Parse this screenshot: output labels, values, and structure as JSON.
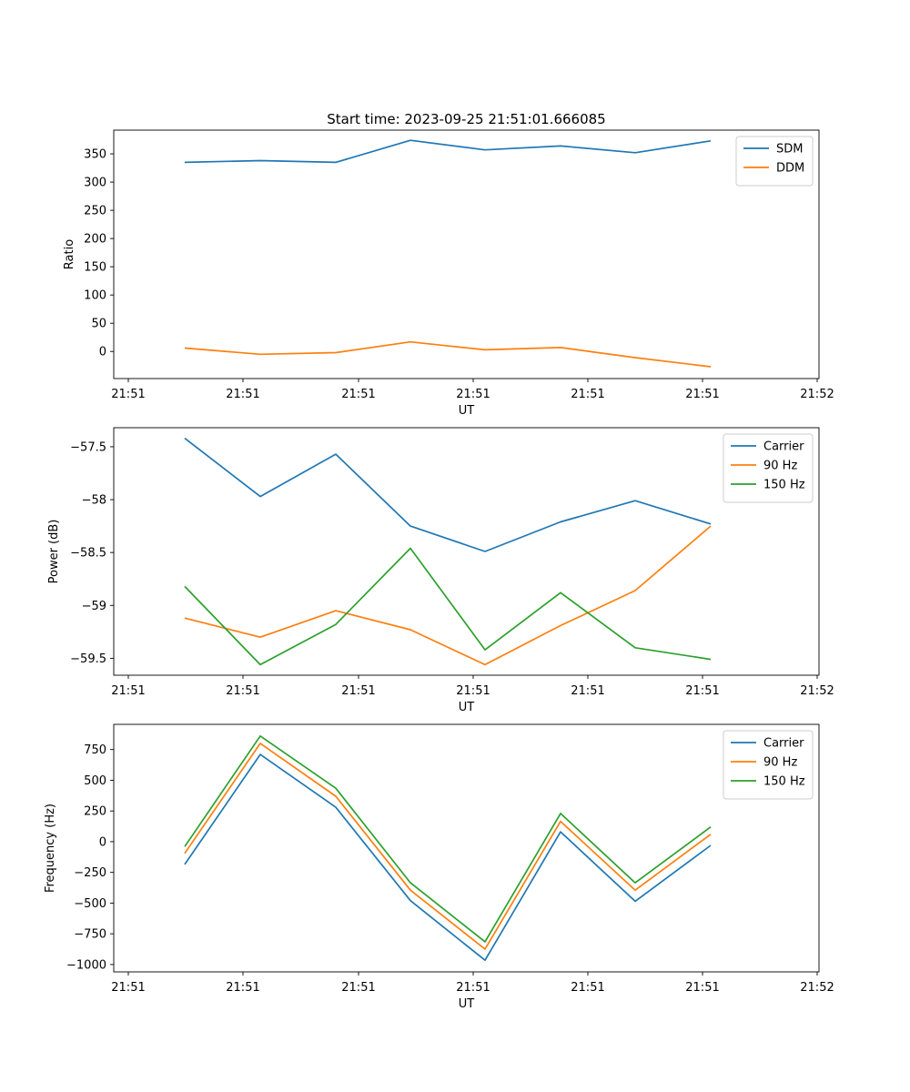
{
  "figure_title": "Start time: 2023-09-25 21:51:01.666085",
  "chart_data": [
    {
      "type": "line",
      "title": "Start time: 2023-09-25 21:51:01.666085",
      "xlabel": "UT",
      "ylabel": "Ratio",
      "x_ticks": [
        "21:51",
        "21:51",
        "21:51",
        "21:51",
        "21:51",
        "21:51",
        "21:52"
      ],
      "y_ticks": [
        0,
        50,
        100,
        150,
        200,
        250,
        300,
        350
      ],
      "ylim": [
        -48,
        392
      ],
      "grid": false,
      "legend": "top-right",
      "series": [
        {
          "name": "SDM",
          "color": "#1f77b4",
          "values": [
            335,
            338,
            335,
            374,
            357,
            364,
            352,
            373
          ]
        },
        {
          "name": "DDM",
          "color": "#ff7f0e",
          "values": [
            6,
            -5,
            -2,
            17,
            3,
            7,
            -11,
            -27
          ]
        }
      ]
    },
    {
      "type": "line",
      "title": "",
      "xlabel": "UT",
      "ylabel": "Power (dB)",
      "x_ticks": [
        "21:51",
        "21:51",
        "21:51",
        "21:51",
        "21:51",
        "21:51",
        "21:52"
      ],
      "y_ticks": [
        -57.5,
        -58.0,
        -58.5,
        -59.0,
        -59.5
      ],
      "ylim": [
        -59.66,
        -57.32
      ],
      "grid": false,
      "legend": "top-right",
      "series": [
        {
          "name": "Carrier",
          "color": "#1f77b4",
          "values": [
            -57.42,
            -57.97,
            -57.57,
            -58.25,
            -58.49,
            -58.21,
            -58.01,
            -58.23
          ]
        },
        {
          "name": "90 Hz",
          "color": "#ff7f0e",
          "values": [
            -59.12,
            -59.3,
            -59.05,
            -59.23,
            -59.56,
            -59.19,
            -58.86,
            -58.25
          ]
        },
        {
          "name": "150 Hz",
          "color": "#2ca02c",
          "values": [
            -58.82,
            -59.56,
            -59.18,
            -58.46,
            -59.42,
            -58.88,
            -59.4,
            -59.51
          ]
        }
      ]
    },
    {
      "type": "line",
      "title": "",
      "xlabel": "UT",
      "ylabel": "Frequency (Hz)",
      "x_ticks": [
        "21:51",
        "21:51",
        "21:51",
        "21:51",
        "21:51",
        "21:51",
        "21:52"
      ],
      "y_ticks": [
        750,
        500,
        250,
        0,
        -250,
        -500,
        -750,
        -1000
      ],
      "ylim": [
        -1060,
        955
      ],
      "grid": false,
      "legend": "top-right",
      "series": [
        {
          "name": "Carrier",
          "color": "#1f77b4",
          "values": [
            -185,
            710,
            280,
            -480,
            -965,
            80,
            -485,
            -30
          ]
        },
        {
          "name": "90 Hz",
          "color": "#ff7f0e",
          "values": [
            -95,
            800,
            370,
            -395,
            -875,
            165,
            -395,
            60
          ]
        },
        {
          "name": "150 Hz",
          "color": "#2ca02c",
          "values": [
            -40,
            860,
            435,
            -335,
            -815,
            230,
            -335,
            120
          ]
        }
      ]
    }
  ]
}
